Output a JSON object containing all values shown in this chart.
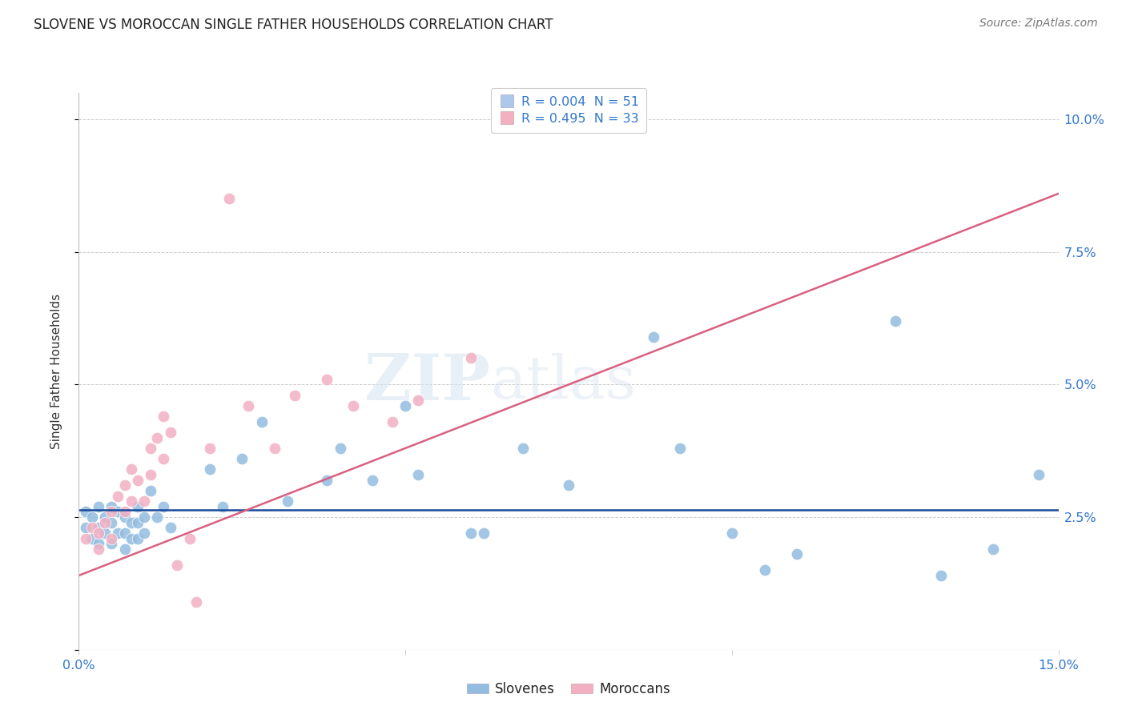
{
  "title": "SLOVENE VS MOROCCAN SINGLE FATHER HOUSEHOLDS CORRELATION CHART",
  "source": "Source: ZipAtlas.com",
  "ylabel": "Single Father Households",
  "xlim": [
    0.0,
    0.15
  ],
  "ylim": [
    0.0,
    0.105
  ],
  "yticks": [
    0.0,
    0.025,
    0.05,
    0.075,
    0.1
  ],
  "ytick_labels": [
    "",
    "2.5%",
    "5.0%",
    "7.5%",
    "10.0%"
  ],
  "xticks": [
    0.0,
    0.05,
    0.1,
    0.15
  ],
  "xtick_labels": [
    "0.0%",
    "",
    "",
    "15.0%"
  ],
  "legend_entries": [
    {
      "label": "R = 0.004  N = 51",
      "color": "#adc8e8"
    },
    {
      "label": "R = 0.495  N = 33",
      "color": "#f2b0c0"
    }
  ],
  "legend_bottom": [
    "Slovenes",
    "Moroccans"
  ],
  "slovene_color": "#92bce0",
  "moroccan_color": "#f2b0c2",
  "slovene_line_color": "#1a4a9a",
  "moroccan_line_color": "#d96080",
  "watermark_zip": "ZIP",
  "watermark_atlas": "atlas",
  "slovene_x": [
    0.001,
    0.001,
    0.002,
    0.002,
    0.003,
    0.003,
    0.003,
    0.004,
    0.004,
    0.005,
    0.005,
    0.005,
    0.006,
    0.006,
    0.007,
    0.007,
    0.007,
    0.008,
    0.008,
    0.009,
    0.009,
    0.009,
    0.01,
    0.01,
    0.011,
    0.012,
    0.013,
    0.014,
    0.02,
    0.022,
    0.025,
    0.028,
    0.032,
    0.038,
    0.04,
    0.045,
    0.05,
    0.052,
    0.06,
    0.062,
    0.068,
    0.075,
    0.088,
    0.092,
    0.1,
    0.105,
    0.11,
    0.125,
    0.132,
    0.14,
    0.147
  ],
  "slovene_y": [
    0.026,
    0.023,
    0.025,
    0.021,
    0.027,
    0.023,
    0.02,
    0.025,
    0.022,
    0.027,
    0.024,
    0.02,
    0.026,
    0.022,
    0.025,
    0.022,
    0.019,
    0.024,
    0.021,
    0.027,
    0.024,
    0.021,
    0.025,
    0.022,
    0.03,
    0.025,
    0.027,
    0.023,
    0.034,
    0.027,
    0.036,
    0.043,
    0.028,
    0.032,
    0.038,
    0.032,
    0.046,
    0.033,
    0.022,
    0.022,
    0.038,
    0.031,
    0.059,
    0.038,
    0.022,
    0.015,
    0.018,
    0.062,
    0.014,
    0.019,
    0.033
  ],
  "moroccan_x": [
    0.001,
    0.002,
    0.003,
    0.003,
    0.004,
    0.005,
    0.005,
    0.006,
    0.007,
    0.007,
    0.008,
    0.008,
    0.009,
    0.01,
    0.011,
    0.011,
    0.012,
    0.013,
    0.013,
    0.014,
    0.015,
    0.017,
    0.018,
    0.02,
    0.023,
    0.026,
    0.03,
    0.033,
    0.038,
    0.042,
    0.048,
    0.052,
    0.06
  ],
  "moroccan_y": [
    0.021,
    0.023,
    0.022,
    0.019,
    0.024,
    0.026,
    0.021,
    0.029,
    0.031,
    0.026,
    0.034,
    0.028,
    0.032,
    0.028,
    0.033,
    0.038,
    0.04,
    0.044,
    0.036,
    0.041,
    0.016,
    0.021,
    0.009,
    0.038,
    0.085,
    0.046,
    0.038,
    0.048,
    0.051,
    0.046,
    0.043,
    0.047,
    0.055
  ],
  "slovene_trend_x": [
    0.0,
    0.15
  ],
  "slovene_trend_y": [
    0.0263,
    0.0263
  ],
  "moroccan_trend_x": [
    0.0,
    0.15
  ],
  "moroccan_trend_y": [
    0.014,
    0.086
  ]
}
